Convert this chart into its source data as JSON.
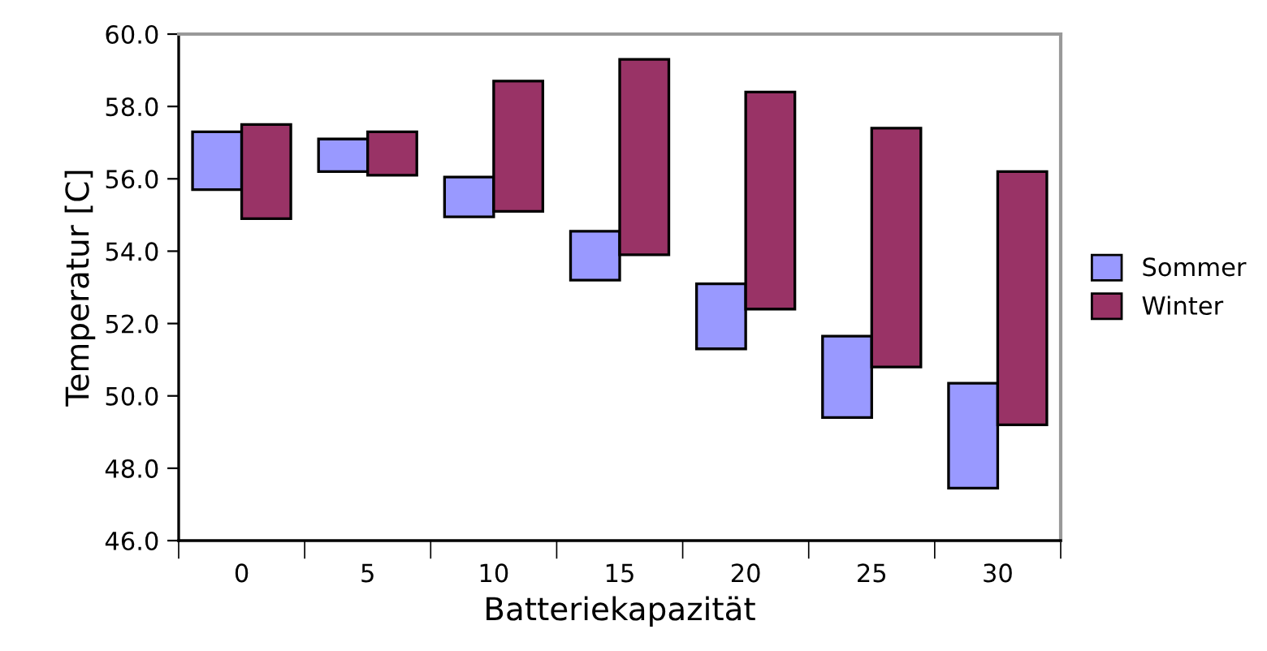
{
  "chart_data": {
    "type": "bar",
    "xlabel": "Batteriekapazität",
    "ylabel": "Temperatur [C]",
    "categories": [
      "0",
      "5",
      "10",
      "15",
      "20",
      "25",
      "30"
    ],
    "series": [
      {
        "name": "Sommer",
        "color": "#9999ff",
        "base": [
          55.7,
          56.2,
          54.95,
          53.2,
          51.3,
          49.4,
          47.45
        ],
        "values": [
          1.6,
          0.9,
          1.1,
          1.35,
          1.8,
          2.25,
          2.9
        ]
      },
      {
        "name": "Winter",
        "color": "#993366",
        "base": [
          54.9,
          56.1,
          55.1,
          53.9,
          52.4,
          50.8,
          49.2
        ],
        "values": [
          2.6,
          1.2,
          3.6,
          5.4,
          6.0,
          6.6,
          7.0
        ]
      }
    ],
    "ylim": [
      46,
      60
    ],
    "yticks": [
      {
        "value": 46,
        "label": "46.0"
      },
      {
        "value": 48,
        "label": "48.0"
      },
      {
        "value": 50,
        "label": "50.0"
      },
      {
        "value": 52,
        "label": "52.0"
      },
      {
        "value": 54,
        "label": "54.0"
      },
      {
        "value": 56,
        "label": "56.0"
      },
      {
        "value": 58,
        "label": "58.0"
      },
      {
        "value": 60,
        "label": "60.0"
      }
    ],
    "grid": false,
    "legend": "right"
  }
}
